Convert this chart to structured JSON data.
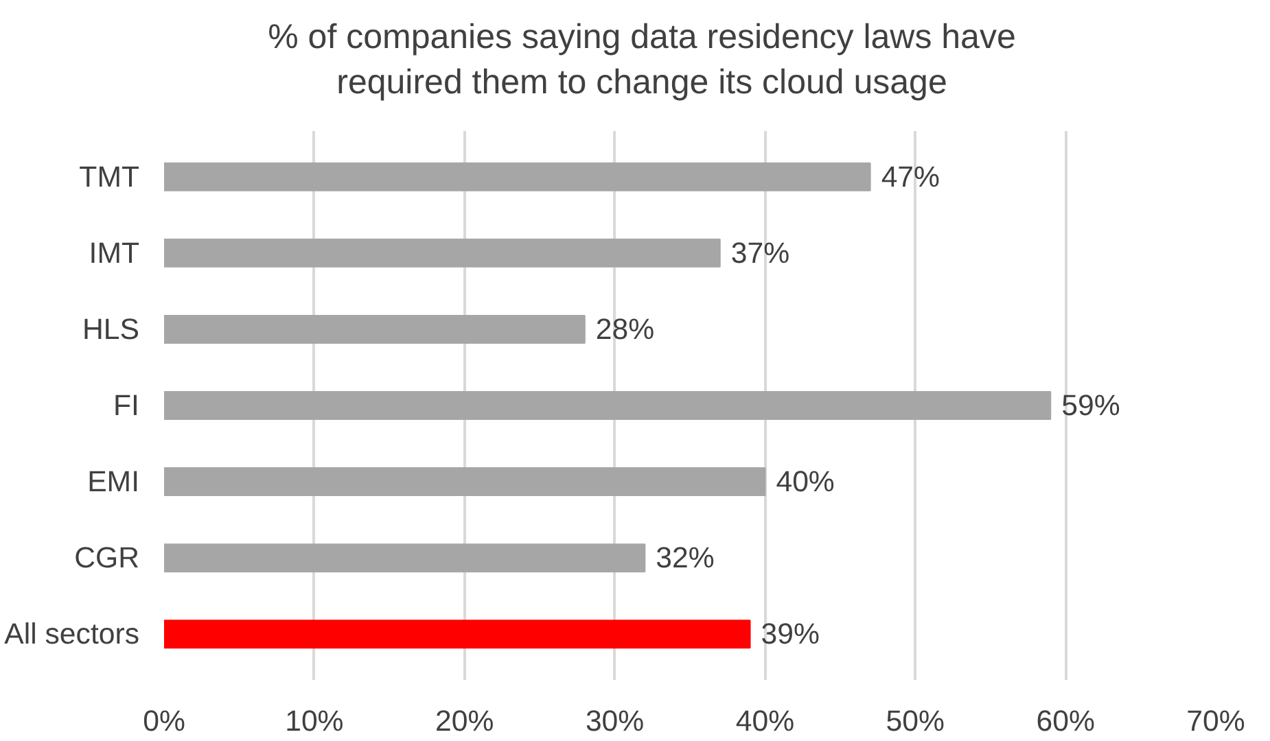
{
  "chart_data": {
    "type": "bar",
    "orientation": "horizontal",
    "title": "% of companies saying data residency laws have\nrequired them to change its cloud usage",
    "categories": [
      "TMT",
      "IMT",
      "HLS",
      "FI",
      "EMI",
      "CGR",
      "All sectors"
    ],
    "values": [
      47,
      37,
      28,
      59,
      40,
      32,
      39
    ],
    "colors": [
      "#a6a6a6",
      "#a6a6a6",
      "#a6a6a6",
      "#a6a6a6",
      "#a6a6a6",
      "#a6a6a6",
      "#ff0000"
    ],
    "value_labels": [
      "47%",
      "37%",
      "28%",
      "59%",
      "40%",
      "32%",
      "39%"
    ],
    "xlim": [
      0,
      70
    ],
    "xticks": [
      {
        "value": 0,
        "label": "0%"
      },
      {
        "value": 10,
        "label": "10%"
      },
      {
        "value": 20,
        "label": "20%"
      },
      {
        "value": 30,
        "label": "30%"
      },
      {
        "value": 40,
        "label": "40%"
      },
      {
        "value": 50,
        "label": "50%"
      },
      {
        "value": 60,
        "label": "60%"
      },
      {
        "value": 70,
        "label": "70%"
      }
    ],
    "grid": "x"
  }
}
